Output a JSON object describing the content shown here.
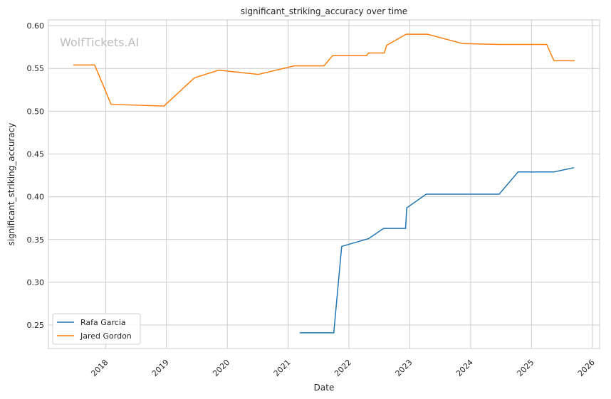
{
  "chart_data": {
    "type": "line",
    "title": "significant_striking_accuracy over time",
    "xlabel": "Date",
    "ylabel": "significant_striking_accuracy",
    "watermark": "WolfTickets.AI",
    "xlim": [
      2017.06,
      2026.12
    ],
    "ylim": [
      0.2226,
      0.6067
    ],
    "xticks": [
      2018,
      2019,
      2020,
      2021,
      2022,
      2023,
      2024,
      2025,
      2026
    ],
    "xtick_labels": [
      "2018",
      "2019",
      "2020",
      "2021",
      "2022",
      "2023",
      "2024",
      "2025",
      "2026"
    ],
    "yticks": [
      0.25,
      0.3,
      0.35,
      0.4,
      0.45,
      0.5,
      0.55,
      0.6
    ],
    "ytick_labels": [
      "0.25",
      "0.30",
      "0.35",
      "0.40",
      "0.45",
      "0.50",
      "0.55",
      "0.60"
    ],
    "grid": true,
    "legend_position": "bottom-left",
    "series": [
      {
        "name": "Rafa Garcia",
        "color": "#1f77b4",
        "x": [
          2021.19,
          2021.75,
          2021.88,
          2022.32,
          2022.57,
          2022.93,
          2022.95,
          2023.27,
          2024.47,
          2024.78,
          2025.37,
          2025.7
        ],
        "y": [
          0.241,
          0.241,
          0.342,
          0.351,
          0.363,
          0.363,
          0.387,
          0.403,
          0.403,
          0.429,
          0.429,
          0.434
        ]
      },
      {
        "name": "Jared Gordon",
        "color": "#ff7f0e",
        "x": [
          2017.47,
          2017.82,
          2018.09,
          2018.96,
          2019.46,
          2019.86,
          2020.51,
          2021.1,
          2021.59,
          2021.73,
          2022.29,
          2022.32,
          2022.58,
          2022.62,
          2022.94,
          2023.29,
          2023.87,
          2024.46,
          2025.25,
          2025.37,
          2025.71
        ],
        "y": [
          0.554,
          0.554,
          0.508,
          0.506,
          0.539,
          0.548,
          0.543,
          0.553,
          0.553,
          0.565,
          0.565,
          0.568,
          0.568,
          0.577,
          0.59,
          0.59,
          0.579,
          0.578,
          0.578,
          0.559,
          0.559
        ]
      }
    ]
  }
}
